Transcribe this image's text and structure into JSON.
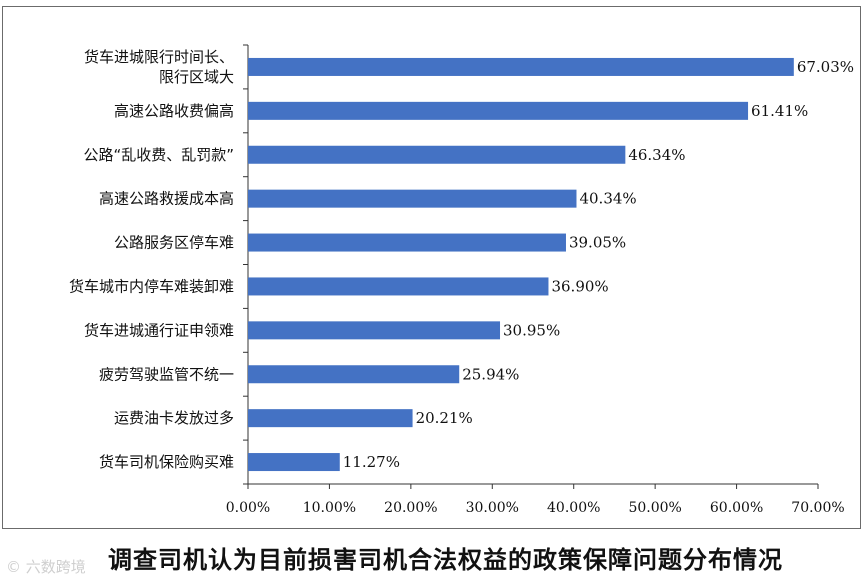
{
  "chart_data": {
    "type": "bar",
    "orientation": "horizontal",
    "categories": [
      [
        "货车进城限行时间长、",
        "限行区域大"
      ],
      [
        "高速公路收费偏高"
      ],
      [
        "公路“乱收费、乱罚款”"
      ],
      [
        "高速公路救援成本高"
      ],
      [
        "公路服务区停车难"
      ],
      [
        "货车城市内停车难装卸难"
      ],
      [
        "货车进城通行证申领难"
      ],
      [
        "疲劳驾驶监管不统一"
      ],
      [
        "运费油卡发放过多"
      ],
      [
        "货车司机保险购买难"
      ]
    ],
    "values": [
      67.03,
      61.41,
      46.34,
      40.34,
      39.05,
      36.9,
      30.95,
      25.94,
      20.21,
      11.27
    ],
    "value_labels": [
      "67.03%",
      "61.41%",
      "46.34%",
      "40.34%",
      "39.05%",
      "36.90%",
      "30.95%",
      "25.94%",
      "20.21%",
      "11.27%"
    ],
    "x_ticks": [
      "0.00%",
      "10.00%",
      "20.00%",
      "30.00%",
      "40.00%",
      "50.00%",
      "60.00%",
      "70.00%"
    ],
    "xlim": [
      0,
      70
    ],
    "bar_color": "#4472c4",
    "title": "调查司机认为目前损害司机合法权益的政策保障问题分布情况",
    "grid": false,
    "legend": "none"
  },
  "watermark": "© 六数跨境"
}
